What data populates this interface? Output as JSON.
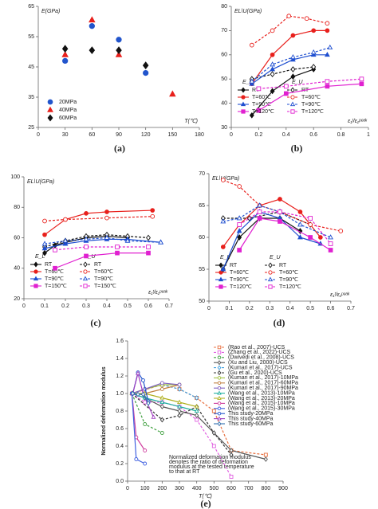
{
  "chart_data": [
    {
      "type": "scatter",
      "label": "(a)",
      "y_label": "E(GPa)",
      "x_label": "T(℃)",
      "xlim": [
        0,
        180
      ],
      "xticks": [
        0,
        30,
        60,
        90,
        120,
        150,
        180
      ],
      "ylim": [
        25,
        65
      ],
      "yticks": [
        25,
        35,
        45,
        55,
        65
      ],
      "series": [
        {
          "name": "20MPa",
          "color": "#2255cc",
          "marker": "circle",
          "filled": true,
          "dashed": false,
          "x": [
            30,
            60,
            90,
            120
          ],
          "values": [
            47,
            58.5,
            54,
            43
          ]
        },
        {
          "name": "40MPa",
          "color": "#e8201c",
          "marker": "triangle",
          "filled": true,
          "dashed": false,
          "x": [
            30,
            60,
            90,
            150
          ],
          "values": [
            49,
            60.5,
            49,
            36
          ]
        },
        {
          "name": "60MPa",
          "color": "#111111",
          "marker": "diamond",
          "filled": true,
          "dashed": false,
          "x": [
            30,
            60,
            90,
            120
          ],
          "values": [
            51,
            50.5,
            50.5,
            45.5
          ]
        }
      ]
    },
    {
      "type": "line",
      "label": "(b)",
      "y_label": "EL\\U(GPa)",
      "x_label": "ε₁ᵗ/ε₁ᵖᵉᵃᵏ",
      "legend_headers": [
        "E_L",
        "E_U"
      ],
      "xlim": [
        0,
        1
      ],
      "xticks": [
        0,
        0.2,
        0.4,
        0.6,
        0.8,
        1
      ],
      "ylim": [
        30,
        80
      ],
      "yticks": [
        30,
        40,
        50,
        60,
        70,
        80
      ],
      "series": [
        {
          "name": "RT",
          "color": "#111111",
          "marker": "diamond",
          "filled": true,
          "dashed": false,
          "x": [
            0.15,
            0.3,
            0.45,
            0.6
          ],
          "values": [
            35,
            45,
            51,
            54
          ]
        },
        {
          "name": "RT",
          "color": "#111111",
          "marker": "diamond",
          "filled": false,
          "dashed": true,
          "x": [
            0.15,
            0.3,
            0.45,
            0.6
          ],
          "values": [
            50,
            52,
            54,
            55
          ]
        },
        {
          "name": "T=60℃",
          "color": "#e8201c",
          "marker": "circle",
          "filled": true,
          "dashed": false,
          "x": [
            0.15,
            0.3,
            0.45,
            0.6,
            0.7
          ],
          "values": [
            48,
            60,
            68,
            70,
            70
          ]
        },
        {
          "name": "T=60℃",
          "color": "#e8201c",
          "marker": "circle",
          "filled": false,
          "dashed": true,
          "x": [
            0.15,
            0.3,
            0.42,
            0.55,
            0.7
          ],
          "values": [
            64,
            70,
            76,
            75,
            73
          ]
        },
        {
          "name": "T=90℃",
          "color": "#1f4fd0",
          "marker": "triangle",
          "filled": true,
          "dashed": false,
          "x": [
            0.15,
            0.3,
            0.45,
            0.6,
            0.7
          ],
          "values": [
            48,
            54,
            58,
            60,
            60
          ]
        },
        {
          "name": "T=90℃",
          "color": "#1f4fd0",
          "marker": "triangle",
          "filled": false,
          "dashed": true,
          "x": [
            0.15,
            0.3,
            0.45,
            0.6,
            0.72
          ],
          "values": [
            49,
            56,
            59,
            61,
            63
          ]
        },
        {
          "name": "T=120℃",
          "color": "#e020d0",
          "marker": "square",
          "filled": true,
          "dashed": false,
          "x": [
            0.2,
            0.4,
            0.7,
            0.95
          ],
          "values": [
            37,
            44,
            47,
            48
          ]
        },
        {
          "name": "T=120℃",
          "color": "#e020d0",
          "marker": "square",
          "filled": false,
          "dashed": true,
          "x": [
            0.2,
            0.4,
            0.7,
            0.95
          ],
          "values": [
            46,
            47,
            49,
            50
          ]
        }
      ]
    },
    {
      "type": "line",
      "label": "(c)",
      "y_label": "EL\\U(GPa)",
      "x_label": "ε₁ᵗ/ε₁ᵖᵉᵃᵏ",
      "legend_headers": [
        "E_L",
        "E_U"
      ],
      "xlim": [
        0,
        0.7
      ],
      "xticks": [
        0,
        0.1,
        0.2,
        0.3,
        0.4,
        0.5,
        0.6,
        0.7
      ],
      "ylim": [
        20,
        100
      ],
      "yticks": [
        20,
        40,
        60,
        80,
        100
      ],
      "series": [
        {
          "name": "RT",
          "color": "#111111",
          "marker": "diamond",
          "filled": true,
          "dashed": false,
          "x": [
            0.1,
            0.15,
            0.2,
            0.3,
            0.4,
            0.5
          ],
          "values": [
            50,
            55,
            57,
            60,
            61,
            60
          ]
        },
        {
          "name": "RT",
          "color": "#111111",
          "marker": "diamond",
          "filled": false,
          "dashed": true,
          "x": [
            0.1,
            0.2,
            0.3,
            0.4,
            0.5,
            0.6
          ],
          "values": [
            54,
            58,
            61,
            62,
            61,
            60
          ]
        },
        {
          "name": "T=60℃",
          "color": "#e8201c",
          "marker": "circle",
          "filled": true,
          "dashed": false,
          "x": [
            0.1,
            0.2,
            0.3,
            0.4,
            0.62
          ],
          "values": [
            62,
            72,
            76,
            77,
            78
          ]
        },
        {
          "name": "T=60℃",
          "color": "#e8201c",
          "marker": "circle",
          "filled": false,
          "dashed": true,
          "x": [
            0.1,
            0.2,
            0.4,
            0.62
          ],
          "values": [
            71,
            72,
            73,
            74
          ]
        },
        {
          "name": "T=90℃",
          "color": "#1f4fd0",
          "marker": "triangle",
          "filled": true,
          "dashed": false,
          "x": [
            0.1,
            0.2,
            0.3,
            0.4,
            0.5,
            0.66
          ],
          "values": [
            53,
            56,
            58,
            59,
            59,
            57
          ]
        },
        {
          "name": "T=90℃",
          "color": "#1f4fd0",
          "marker": "triangle",
          "filled": false,
          "dashed": true,
          "x": [
            0.1,
            0.2,
            0.3,
            0.4,
            0.5,
            0.66
          ],
          "values": [
            56,
            58,
            59,
            60,
            58,
            57
          ]
        },
        {
          "name": "T=150℃",
          "color": "#e020d0",
          "marker": "square",
          "filled": true,
          "dashed": false,
          "x": [
            0.15,
            0.3,
            0.45,
            0.6
          ],
          "values": [
            40,
            48,
            50,
            50
          ]
        },
        {
          "name": "T=150℃",
          "color": "#e020d0",
          "marker": "square",
          "filled": false,
          "dashed": true,
          "x": [
            0.15,
            0.3,
            0.45,
            0.6
          ],
          "values": [
            52,
            54,
            54,
            54
          ]
        }
      ]
    },
    {
      "type": "line",
      "label": "(d)",
      "y_label": "EL\\U(GPa)",
      "x_label": "ε₁ᵗ/ε₁ᵖᵉᵃᵏ",
      "legend_headers": [
        "E_L",
        "E_U"
      ],
      "xlim": [
        0,
        0.7
      ],
      "xticks": [
        0,
        0.1,
        0.2,
        0.3,
        0.4,
        0.5,
        0.6,
        0.7
      ],
      "ylim": [
        50,
        70
      ],
      "yticks": [
        50,
        55,
        60,
        65,
        70
      ],
      "series": [
        {
          "name": "RT",
          "color": "#111111",
          "marker": "diamond",
          "filled": true,
          "dashed": false,
          "x": [
            0.07,
            0.15,
            0.25,
            0.35,
            0.45
          ],
          "values": [
            55,
            60,
            63,
            63,
            61
          ]
        },
        {
          "name": "RT",
          "color": "#111111",
          "marker": "diamond",
          "filled": false,
          "dashed": true,
          "x": [
            0.07,
            0.2,
            0.35,
            0.5
          ],
          "values": [
            63,
            63,
            64,
            62
          ]
        },
        {
          "name": "T=60℃",
          "color": "#e8201c",
          "marker": "circle",
          "filled": true,
          "dashed": false,
          "x": [
            0.07,
            0.15,
            0.25,
            0.35,
            0.45,
            0.55
          ],
          "values": [
            58.5,
            62,
            65,
            66,
            64,
            60
          ]
        },
        {
          "name": "T=60℃",
          "color": "#e8201c",
          "marker": "circle",
          "filled": false,
          "dashed": true,
          "x": [
            0.07,
            0.15,
            0.25,
            0.35,
            0.5,
            0.65
          ],
          "values": [
            69,
            68,
            65,
            64,
            62,
            61
          ]
        },
        {
          "name": "T=90℃",
          "color": "#1f4fd0",
          "marker": "triangle",
          "filled": true,
          "dashed": false,
          "x": [
            0.07,
            0.15,
            0.25,
            0.35,
            0.45,
            0.55
          ],
          "values": [
            55,
            61,
            64,
            63,
            60,
            59
          ]
        },
        {
          "name": "T=90℃",
          "color": "#1f4fd0",
          "marker": "triangle",
          "filled": false,
          "dashed": true,
          "x": [
            0.07,
            0.15,
            0.25,
            0.35,
            0.45,
            0.6
          ],
          "values": [
            62.5,
            63,
            65,
            64,
            62,
            60
          ]
        },
        {
          "name": "T=120℃",
          "color": "#e020d0",
          "marker": "square",
          "filled": true,
          "dashed": false,
          "x": [
            0.15,
            0.25,
            0.35,
            0.5,
            0.6
          ],
          "values": [
            58,
            63,
            62.5,
            60,
            58
          ]
        },
        {
          "name": "T=120℃",
          "color": "#e020d0",
          "marker": "square",
          "filled": false,
          "dashed": true,
          "x": [
            0.15,
            0.25,
            0.35,
            0.5,
            0.6
          ],
          "values": [
            62,
            64,
            64,
            63,
            59
          ]
        }
      ]
    },
    {
      "type": "line",
      "label": "(e)",
      "y_label": "Normalized deformation modulus",
      "x_label": "T(℃)",
      "annotation_lines": [
        "Normalized deformation modulus",
        "denotes the ratio of deformation",
        "modulus at the tested temperature",
        "to that at RT"
      ],
      "xlim": [
        0,
        900
      ],
      "xticks": [
        0,
        100,
        200,
        300,
        400,
        500,
        600,
        700,
        800,
        900
      ],
      "ylim": [
        0,
        1.6
      ],
      "yticks": [
        {
          "value": 0,
          "label": "0.0"
        },
        0.2,
        0.4,
        0.6,
        0.8,
        {
          "value": 1,
          "label": "1.0"
        },
        1.2,
        1.4,
        1.6
      ],
      "series": [
        {
          "name": "(Rao et al., 2007)-UCS",
          "color": "#e87040",
          "marker": "square",
          "filled": false,
          "dashed": true,
          "x": [
            25,
            200,
            300,
            400,
            500,
            600,
            800
          ],
          "values": [
            1,
            1.1,
            1.05,
            0.95,
            0.8,
            0.35,
            0.3
          ]
        },
        {
          "name": "(Zhang et al., 2022)-UCS",
          "color": "#e060e0",
          "marker": "square",
          "filled": false,
          "dashed": true,
          "x": [
            25,
            100,
            200,
            300,
            400,
            500,
            600
          ],
          "values": [
            1,
            0.9,
            0.9,
            0.85,
            0.7,
            0.4,
            0.05
          ]
        },
        {
          "name": "(Dwivedi et al., 2008)-UCS",
          "color": "#40a040",
          "marker": "circle",
          "filled": false,
          "dashed": true,
          "x": [
            25,
            100,
            200
          ],
          "values": [
            1,
            0.65,
            0.55
          ]
        },
        {
          "name": "(Xu and Liu, 2000)-UCS",
          "color": "#555555",
          "marker": "diamond",
          "filled": false,
          "dashed": false,
          "x": [
            25,
            100,
            200,
            300,
            400,
            600,
            800
          ],
          "values": [
            1,
            0.95,
            0.85,
            0.8,
            0.75,
            0.35,
            0.25
          ]
        },
        {
          "name": "(Kumari et al., 2017)-UCS",
          "color": "#40a0e0",
          "marker": "diamond",
          "filled": false,
          "dashed": true,
          "x": [
            25,
            100,
            200,
            300,
            400
          ],
          "values": [
            1,
            1.05,
            1.1,
            1.05,
            0.95
          ]
        },
        {
          "name": "(Gu et al., 2020)-UCS",
          "color": "#333333",
          "marker": "diamond",
          "filled": false,
          "dashed": true,
          "x": [
            25,
            200,
            300,
            400,
            500,
            600
          ],
          "values": [
            1,
            0.7,
            0.75,
            0.85,
            0.55,
            0.3
          ]
        },
        {
          "name": "(Kumari et al., 2017)-10MPa",
          "color": "#a0c040",
          "marker": "circle",
          "filled": false,
          "dashed": false,
          "x": [
            25,
            100,
            200,
            300
          ],
          "values": [
            1,
            1.05,
            1.1,
            1.1
          ]
        },
        {
          "name": "(Kumari et al., 2017)-60MPa",
          "color": "#c08040",
          "marker": "circle",
          "filled": false,
          "dashed": false,
          "x": [
            25,
            100,
            200,
            300
          ],
          "values": [
            1,
            1,
            1.05,
            1.1
          ]
        },
        {
          "name": "(Kumari et al., 2017)-90MPa",
          "color": "#8060c0",
          "marker": "circle",
          "filled": false,
          "dashed": false,
          "x": [
            25,
            100,
            200,
            300
          ],
          "values": [
            1,
            1.05,
            1.12,
            1.1
          ]
        },
        {
          "name": "(Wang et al., 2013)-10MPa",
          "color": "#20b0a0",
          "marker": "triangle",
          "filled": false,
          "dashed": false,
          "x": [
            25,
            100,
            200,
            300,
            400
          ],
          "values": [
            1,
            0.95,
            0.9,
            0.85,
            0.8
          ]
        },
        {
          "name": "(Wang et al., 2013)-20MPa",
          "color": "#b0b020",
          "marker": "triangle",
          "filled": false,
          "dashed": false,
          "x": [
            25,
            100,
            200,
            300,
            400
          ],
          "values": [
            1,
            1,
            0.95,
            0.9,
            0.85
          ]
        },
        {
          "name": "(Wang et al., 2015)-10MPa",
          "color": "#d040a0",
          "marker": "circle",
          "filled": false,
          "dashed": false,
          "x": [
            25,
            50,
            100
          ],
          "values": [
            1,
            0.5,
            0.35
          ]
        },
        {
          "name": "(Wang et al., 2015)-30MPa",
          "color": "#4060e0",
          "marker": "circle",
          "filled": false,
          "dashed": false,
          "x": [
            25,
            50,
            100
          ],
          "values": [
            1,
            0.25,
            0.2
          ]
        },
        {
          "name": "This study-20MPa",
          "color": "#2255cc",
          "marker": "circle",
          "filled": false,
          "dashed": false,
          "x": [
            30,
            60,
            90,
            120
          ],
          "values": [
            1,
            1.24,
            1.15,
            0.91
          ]
        },
        {
          "name": "This study-40MPa",
          "color": "#a040c0",
          "marker": "triangle",
          "filled": false,
          "dashed": false,
          "x": [
            30,
            60,
            90,
            150
          ],
          "values": [
            1,
            1.23,
            1,
            0.73
          ]
        },
        {
          "name": "This study-60MPa",
          "color": "#3070b0",
          "marker": "diamond",
          "filled": false,
          "dashed": false,
          "x": [
            30,
            60,
            90,
            120
          ],
          "values": [
            1,
            0.99,
            0.99,
            0.89
          ]
        }
      ]
    }
  ]
}
